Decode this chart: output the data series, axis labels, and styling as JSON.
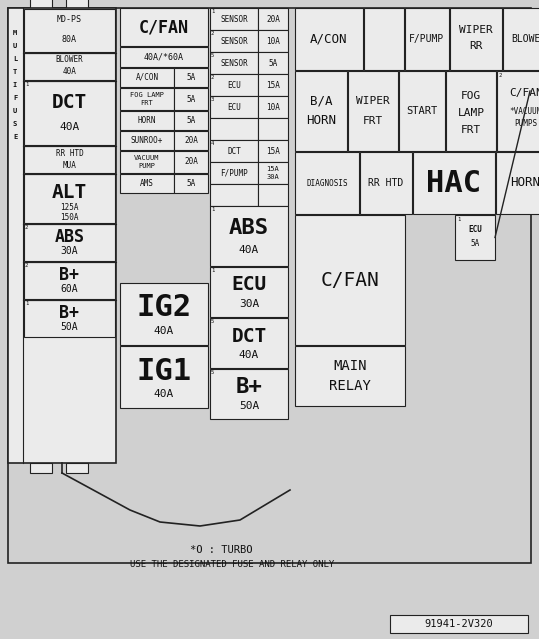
{
  "bg_color": "#d0d0d0",
  "box_fill": "#ebebeb",
  "box_border": "#222222",
  "text_color": "#111111",
  "title": "91941-2V320",
  "footnote1": "*O : TURBO",
  "footnote2": "USE THE DESIGNATED FUSE AND RELAY ONLY"
}
